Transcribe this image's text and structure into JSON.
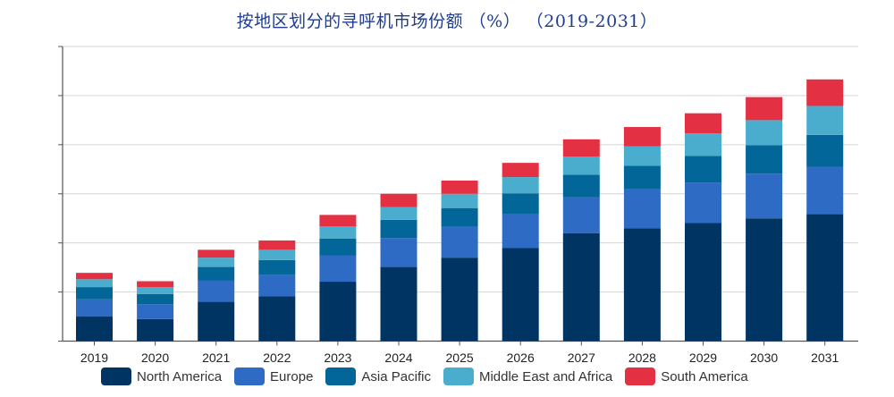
{
  "chart_data": {
    "type": "bar",
    "stacked": true,
    "title": "按地区划分的寻呼机市场份额 （%） （2019-2031）",
    "xlabel": "",
    "ylabel": "",
    "ylim": [
      0,
      60
    ],
    "y_ticks_labeled": false,
    "grid": true,
    "legend_position": "bottom",
    "categories": [
      "2019",
      "2020",
      "2021",
      "2022",
      "2023",
      "2024",
      "2025",
      "2026",
      "2027",
      "2028",
      "2029",
      "2030",
      "2031"
    ],
    "series": [
      {
        "name": "North America",
        "color": "#003463",
        "values": [
          5.0,
          4.5,
          8.0,
          9.1,
          12.1,
          15.1,
          17.0,
          19.0,
          22.0,
          23.0,
          24.1,
          25.0,
          25.9
        ]
      },
      {
        "name": "Europe",
        "color": "#2e6bc4",
        "values": [
          3.5,
          3.0,
          4.3,
          4.4,
          5.3,
          5.9,
          6.4,
          6.8,
          7.3,
          7.9,
          8.2,
          9.1,
          9.6
        ]
      },
      {
        "name": "Asia Pacific",
        "color": "#026699",
        "values": [
          2.5,
          2.1,
          2.8,
          3.0,
          3.5,
          3.7,
          3.7,
          4.3,
          4.6,
          4.8,
          5.4,
          5.8,
          6.5
        ]
      },
      {
        "name": "Middle East and Africa",
        "color": "#4badcd",
        "values": [
          1.6,
          1.4,
          1.9,
          2.1,
          2.5,
          2.6,
          2.9,
          3.3,
          3.7,
          4.0,
          4.6,
          5.1,
          5.9
        ]
      },
      {
        "name": "South America",
        "color": "#e33042",
        "values": [
          1.3,
          1.2,
          1.6,
          1.9,
          2.3,
          2.7,
          2.7,
          2.9,
          3.5,
          3.9,
          4.1,
          4.7,
          5.4
        ]
      }
    ]
  }
}
